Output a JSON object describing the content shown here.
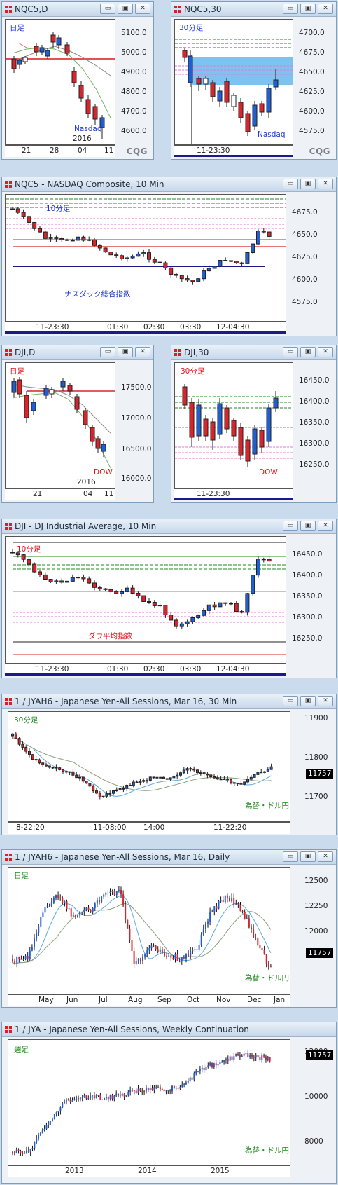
{
  "panels": {
    "nq_daily": {
      "title": "NQC5,D",
      "period_label": "日足",
      "instrument_label": "Nasdaq",
      "y_ticks": [
        "5100.0",
        "5000.0",
        "4900.0",
        "4800.0",
        "4700.0",
        "4600.0"
      ],
      "x_ticks": [
        "21",
        "28",
        "04",
        "11"
      ],
      "year_label": "2016"
    },
    "nq_30": {
      "title": "NQC5,30",
      "period_label": "30分足",
      "instrument_label": "Nasdaq",
      "y_ticks": [
        "4700.0",
        "4675.0",
        "4650.0",
        "4625.0",
        "4600.0",
        "4575.0"
      ],
      "x_ticks": [
        "11-23:30"
      ]
    },
    "nq_10": {
      "title": "NQC5 - NASDAQ Composite, 10 Min",
      "period_label": "10分足",
      "instrument_label": "ナスダック総合指数",
      "y_ticks": [
        "4675.0",
        "4650.0",
        "4625.0",
        "4600.0",
        "4575.0"
      ],
      "x_ticks": [
        "11-23:30",
        "01:30",
        "02:30",
        "03:30",
        "12-04:30"
      ]
    },
    "dji_daily": {
      "title": "DJI,D",
      "period_label": "日足",
      "instrument_label": "DOW",
      "y_ticks": [
        "17500.0",
        "17000.0",
        "16500.0",
        "16000.0"
      ],
      "x_ticks": [
        "21",
        "04",
        "11"
      ],
      "year_label": "2016"
    },
    "dji_30": {
      "title": "DJI,30",
      "period_label": "30分足",
      "instrument_label": "DOW",
      "y_ticks": [
        "16450.0",
        "16400.0",
        "16350.0",
        "16300.0",
        "16250.0"
      ],
      "x_ticks": [
        "11-23:30"
      ]
    },
    "dji_10": {
      "title": "DJI - DJ Industrial Average, 10 Min",
      "period_label": "10分足",
      "instrument_label": "ダウ平均指数",
      "y_ticks": [
        "16450.0",
        "16400.0",
        "16350.0",
        "16300.0",
        "16250.0"
      ],
      "x_ticks": [
        "11-23:30",
        "01:30",
        "02:30",
        "03:30",
        "12-04:30"
      ]
    },
    "jy_30": {
      "title": "1 / JYAH6 - Japanese Yen-All Sessions, Mar 16, 30 Min",
      "period_label": "30分足",
      "instrument_label": "為替・ドル円",
      "y_ticks": [
        "11900",
        "11800",
        "11700"
      ],
      "x_ticks": [
        "8-22:20",
        "11-08:00",
        "14:00",
        "11-22:20"
      ],
      "last_price": "11757"
    },
    "jy_daily": {
      "title": "1 / JYAH6 - Japanese Yen-All Sessions, Mar 16, Daily",
      "period_label": "日足",
      "instrument_label": "為替・ドル円",
      "y_ticks": [
        "12500",
        "12250",
        "12000"
      ],
      "x_ticks": [
        "May",
        "Jun",
        "Jul",
        "Aug",
        "Sep",
        "Oct",
        "Nov",
        "Dec",
        "Jan"
      ],
      "last_price": "11757"
    },
    "jy_weekly": {
      "title": "1 / JYA - Japanese Yen-All Sessions, Weekly Continuation",
      "period_label": "週足",
      "instrument_label": "為替・ドル円",
      "y_ticks": [
        "12000",
        "10000",
        "8000"
      ],
      "x_ticks": [
        "2013",
        "2014",
        "2015"
      ],
      "last_price": "11757"
    }
  },
  "window_buttons": {
    "minimize": "▭",
    "restore": "▣",
    "close": "✕"
  },
  "brand": "CQG",
  "colors": {
    "up": "#1f5fd6",
    "down": "#d8242a",
    "bg": "#c9dbed"
  }
}
